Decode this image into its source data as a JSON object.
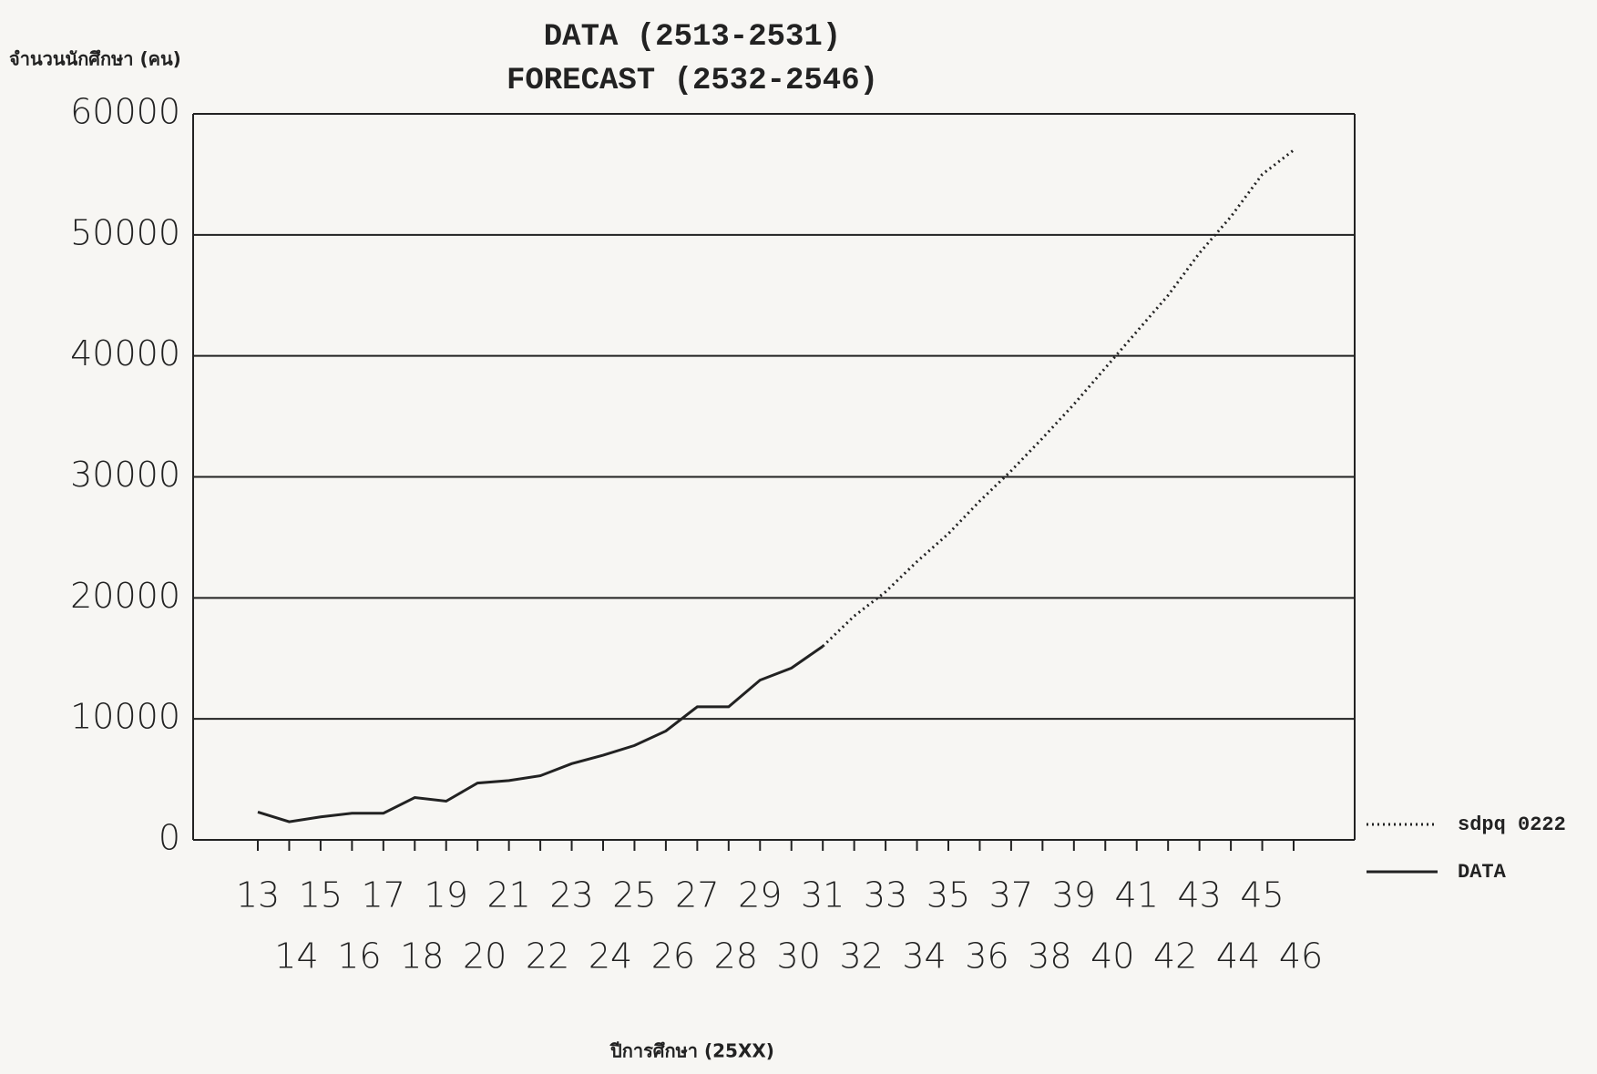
{
  "chart_data": {
    "type": "line",
    "title": "DATA (2513-2531)",
    "subtitle": "FORECAST (2532-2546)",
    "y_label": "จำนวนนักศึกษา (คน)",
    "x_label": "ปีการศึกษา (25XX)",
    "categories": [
      "13",
      "14",
      "15",
      "16",
      "17",
      "18",
      "19",
      "20",
      "21",
      "22",
      "23",
      "24",
      "25",
      "26",
      "27",
      "28",
      "29",
      "30",
      "31",
      "32",
      "33",
      "34",
      "35",
      "36",
      "37",
      "38",
      "39",
      "40",
      "41",
      "42",
      "43",
      "44",
      "45",
      "46"
    ],
    "series": [
      {
        "name": "sdpq 0222",
        "color": "#222222",
        "dash": "dotted",
        "values": [
          null,
          null,
          null,
          null,
          null,
          null,
          null,
          null,
          null,
          null,
          null,
          null,
          null,
          null,
          null,
          null,
          null,
          null,
          16000,
          18500,
          20500,
          23000,
          25300,
          28000,
          30500,
          33200,
          36000,
          39000,
          42000,
          45000,
          48500,
          51500,
          55000,
          57000
        ]
      },
      {
        "name": "DATA",
        "color": "#222222",
        "dash": "solid",
        "values": [
          2300,
          1500,
          1900,
          2200,
          2200,
          3500,
          3200,
          4700,
          4900,
          5300,
          6300,
          7000,
          7800,
          9000,
          11000,
          11000,
          13200,
          14200,
          16000,
          null,
          null,
          null,
          null,
          null,
          null,
          null,
          null,
          null,
          null,
          null,
          null,
          null,
          null,
          null
        ]
      }
    ],
    "ylim": [
      0,
      60000
    ],
    "yticks": [
      0,
      10000,
      20000,
      30000,
      40000,
      50000,
      60000
    ],
    "grid": true,
    "legend": "right"
  }
}
